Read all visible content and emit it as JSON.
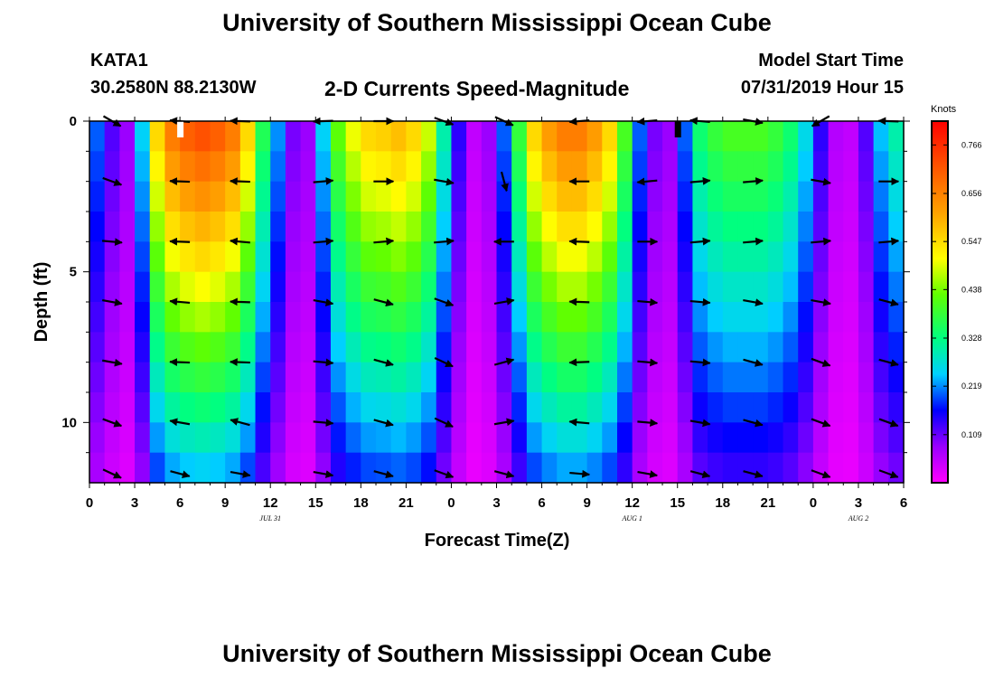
{
  "page": {
    "title_top": "University of Southern Mississippi Ocean Cube",
    "title_bottom": "University of Southern Mississippi Ocean Cube",
    "station": "KATA1",
    "coords": "30.2580N 88.2130W",
    "subtitle": "2-D Currents Speed-Magnitude",
    "model_start_label": "Model Start Time",
    "model_start_value": "07/31/2019 Hour 15"
  },
  "chart_data": {
    "type": "heatmap",
    "title": "2-D Currents Speed-Magnitude",
    "xlabel": "Forecast Time(Z)",
    "ylabel": "Depth (ft)",
    "x_range_hours": [
      0,
      54
    ],
    "y_range_ft": [
      0,
      12
    ],
    "y_inverted": true,
    "x_ticks": [
      {
        "h": 0,
        "label": "0"
      },
      {
        "h": 3,
        "label": "3"
      },
      {
        "h": 6,
        "label": "6"
      },
      {
        "h": 9,
        "label": "9"
      },
      {
        "h": 12,
        "label": "12"
      },
      {
        "h": 15,
        "label": "15"
      },
      {
        "h": 18,
        "label": "18"
      },
      {
        "h": 21,
        "label": "21"
      },
      {
        "h": 24,
        "label": "0"
      },
      {
        "h": 27,
        "label": "3"
      },
      {
        "h": 30,
        "label": "6"
      },
      {
        "h": 33,
        "label": "9"
      },
      {
        "h": 36,
        "label": "12"
      },
      {
        "h": 39,
        "label": "15"
      },
      {
        "h": 42,
        "label": "18"
      },
      {
        "h": 45,
        "label": "21"
      },
      {
        "h": 48,
        "label": "0"
      },
      {
        "h": 51,
        "label": "3"
      },
      {
        "h": 54,
        "label": "6"
      }
    ],
    "date_labels": [
      {
        "h": 12,
        "label": "JUL 31"
      },
      {
        "h": 36,
        "label": "AUG 1"
      },
      {
        "h": 60,
        "label": "AUG 2"
      }
    ],
    "y_ticks": [
      {
        "v": 0,
        "label": "0"
      },
      {
        "v": 5,
        "label": "5"
      },
      {
        "v": 10,
        "label": "10"
      }
    ],
    "colorbar": {
      "unit_label": "Knots",
      "range": [
        0,
        0.82
      ],
      "tick_labels": [
        "0.766",
        "0.656",
        "0.547",
        "0.438",
        "0.328",
        "0.219",
        "0.109"
      ],
      "tick_values": [
        0.766,
        0.656,
        0.547,
        0.438,
        0.328,
        0.219,
        0.109
      ]
    },
    "speed_columns_hours": [
      0,
      1,
      2,
      3,
      4,
      5,
      6,
      7,
      8,
      9,
      10,
      11,
      12,
      13,
      14,
      15,
      16,
      17,
      18,
      19,
      20,
      21,
      22,
      23,
      24,
      25,
      26,
      27,
      28,
      29,
      30,
      31,
      32,
      33,
      34,
      35,
      36,
      37,
      38,
      39,
      40,
      41,
      42,
      43,
      44,
      45,
      46,
      47,
      48,
      49,
      50,
      51,
      52,
      53
    ],
    "speed_surface_knots": [
      0.2,
      0.12,
      0.08,
      0.25,
      0.55,
      0.66,
      0.7,
      0.72,
      0.7,
      0.66,
      0.55,
      0.36,
      0.22,
      0.1,
      0.08,
      0.25,
      0.42,
      0.5,
      0.55,
      0.56,
      0.58,
      0.55,
      0.48,
      0.3,
      0.14,
      0.05,
      0.08,
      0.2,
      0.38,
      0.55,
      0.62,
      0.66,
      0.66,
      0.62,
      0.55,
      0.4,
      0.2,
      0.1,
      0.08,
      0.2,
      0.34,
      0.38,
      0.4,
      0.4,
      0.4,
      0.38,
      0.34,
      0.26,
      0.14,
      0.06,
      0.05,
      0.12,
      0.24,
      0.3
    ],
    "depth_decay_factor_at_bottom": 0.35,
    "vector_rows_ft": [
      0,
      2,
      4,
      6,
      8,
      10,
      11.7
    ],
    "vector_cols_hours": [
      1.5,
      6,
      10,
      15.5,
      19.5,
      23.5,
      27.5,
      32.5,
      37,
      40.5,
      44,
      48.5,
      53
    ],
    "vectors_deg": [
      [
        -30,
        175,
        178,
        -178,
        0,
        -20,
        -25,
        185,
        185,
        175,
        -10,
        -150,
        178
      ],
      [
        -20,
        178,
        178,
        5,
        0,
        -10,
        -75,
        180,
        185,
        5,
        5,
        -10,
        0
      ],
      [
        -5,
        178,
        175,
        5,
        5,
        5,
        180,
        178,
        0,
        5,
        5,
        5,
        5
      ],
      [
        -10,
        175,
        178,
        -10,
        -15,
        -20,
        10,
        178,
        -5,
        -5,
        -10,
        -10,
        -15
      ],
      [
        -10,
        178,
        178,
        -5,
        -15,
        -25,
        15,
        182,
        -5,
        -5,
        -15,
        -20,
        -15
      ],
      [
        -20,
        170,
        165,
        -5,
        -15,
        -25,
        10,
        175,
        -5,
        -10,
        -15,
        -20,
        -20
      ],
      [
        -25,
        -15,
        -10,
        -10,
        -15,
        -20,
        -15,
        -5,
        -10,
        -15,
        -15,
        -20,
        -20
      ]
    ],
    "surface_markers": [
      {
        "h": 6,
        "color": "#ffffff"
      },
      {
        "h": 39,
        "color": "#000000"
      }
    ]
  }
}
